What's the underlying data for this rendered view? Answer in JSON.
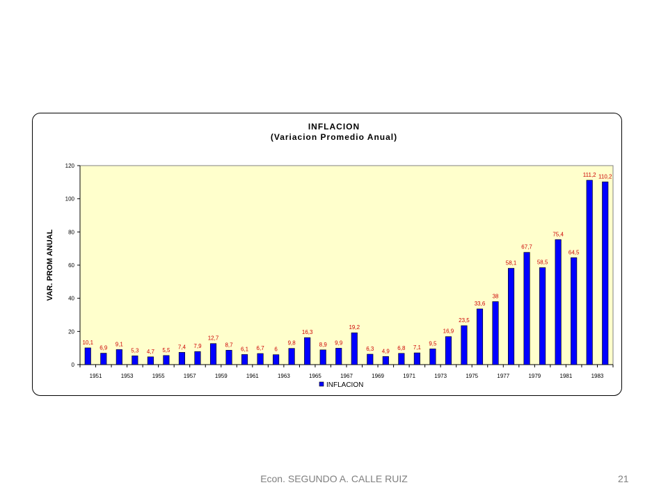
{
  "chart_data": {
    "type": "bar",
    "title": "INFLACION",
    "subtitle": "(Variacion Promedio Anual)",
    "xlabel": "",
    "ylabel": "VAR. PROM ANUAL",
    "ylim": [
      0,
      120
    ],
    "yticks": [
      0,
      20,
      40,
      60,
      80,
      100,
      120
    ],
    "grid": false,
    "legend": "bottom",
    "bar_color": "#0000ff",
    "label_color": "#cc0000",
    "plot_bg": "#ffffcc",
    "categories": [
      "1951",
      "1952",
      "1953",
      "1954",
      "1955",
      "1956",
      "1957",
      "1958",
      "1959",
      "1960",
      "1961",
      "1962",
      "1963",
      "1964",
      "1965",
      "1966",
      "1967",
      "1968",
      "1969",
      "1970",
      "1971",
      "1972",
      "1973",
      "1974",
      "1975",
      "1976",
      "1977",
      "1978",
      "1979",
      "1980",
      "1981",
      "1982",
      "1983",
      "1984"
    ],
    "xtick_labels": [
      "1951",
      "",
      "1953",
      "",
      "1955",
      "",
      "1957",
      "",
      "1959",
      "",
      "1961",
      "",
      "1963",
      "",
      "1965",
      "",
      "1967",
      "",
      "1969",
      "",
      "1971",
      "",
      "1973",
      "",
      "1975",
      "",
      "1977",
      "",
      "1979",
      "",
      "1981",
      "",
      "1983",
      ""
    ],
    "series": [
      {
        "name": "INFLACION",
        "values": [
          10.1,
          6.9,
          9.1,
          5.3,
          4.7,
          5.5,
          7.4,
          7.9,
          12.7,
          8.7,
          6.1,
          6.7,
          6,
          9.8,
          16.3,
          8.9,
          9.9,
          19.2,
          6.3,
          4.9,
          6.8,
          7.1,
          9.5,
          16.9,
          23.5,
          33.6,
          38,
          58.1,
          67.7,
          58.5,
          75.4,
          64.5,
          111.2,
          110.2
        ]
      }
    ],
    "data_labels": [
      "10,1",
      "6,9",
      "9,1",
      "5,3",
      "4,7",
      "5,5",
      "7,4",
      "7,9",
      "12,7",
      "8,7",
      "6,1",
      "6,7",
      "6",
      "9,8",
      "16,3",
      "8,9",
      "9,9",
      "19,2",
      "6,3",
      "4,9",
      "6,8",
      "7,1",
      "9,5",
      "16,9",
      "23,5",
      "33,6",
      "38",
      "58,1",
      "67,7",
      "58,5",
      "75,4",
      "64,5",
      "111,2",
      "110,2"
    ]
  },
  "footer": {
    "author": "Econ. SEGUNDO A. CALLE RUIZ",
    "page_number": "21"
  }
}
